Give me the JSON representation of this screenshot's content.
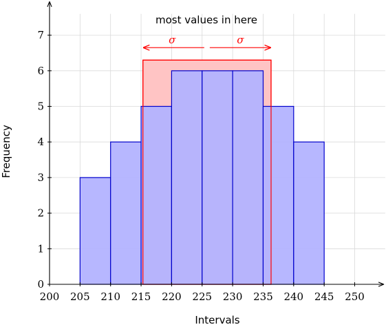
{
  "chart_data": {
    "type": "bar",
    "bin_edges": [
      200,
      205,
      210,
      215,
      220,
      225,
      230,
      235,
      240,
      245,
      250
    ],
    "values": [
      0,
      3,
      4,
      5,
      6,
      6,
      6,
      5,
      4,
      0
    ],
    "x_ticks": [
      "200",
      "205",
      "210",
      "215",
      "220",
      "225",
      "230",
      "235",
      "240",
      "245",
      "250"
    ],
    "y_ticks": [
      "0",
      "1",
      "2",
      "3",
      "4",
      "5",
      "6",
      "7"
    ],
    "xlim": [
      200,
      255
    ],
    "ylim": [
      0,
      7.6
    ],
    "xlabel": "Intervals",
    "ylabel": "Frequency",
    "grid": true,
    "highlight": {
      "x_range": [
        215.3,
        236.3
      ],
      "height": 6.3,
      "label": "most values in here",
      "sigma_left": "σ",
      "sigma_right": "σ",
      "arrow_y": 6.65,
      "center_x": 225.8
    },
    "colors": {
      "bar_fill": "#b3b3ff",
      "bar_stroke": "#0000cc",
      "highlight_fill": "#ffc4c4",
      "highlight_stroke": "#ff0000",
      "grid": "#d9d9d9",
      "axis": "#000000"
    }
  }
}
